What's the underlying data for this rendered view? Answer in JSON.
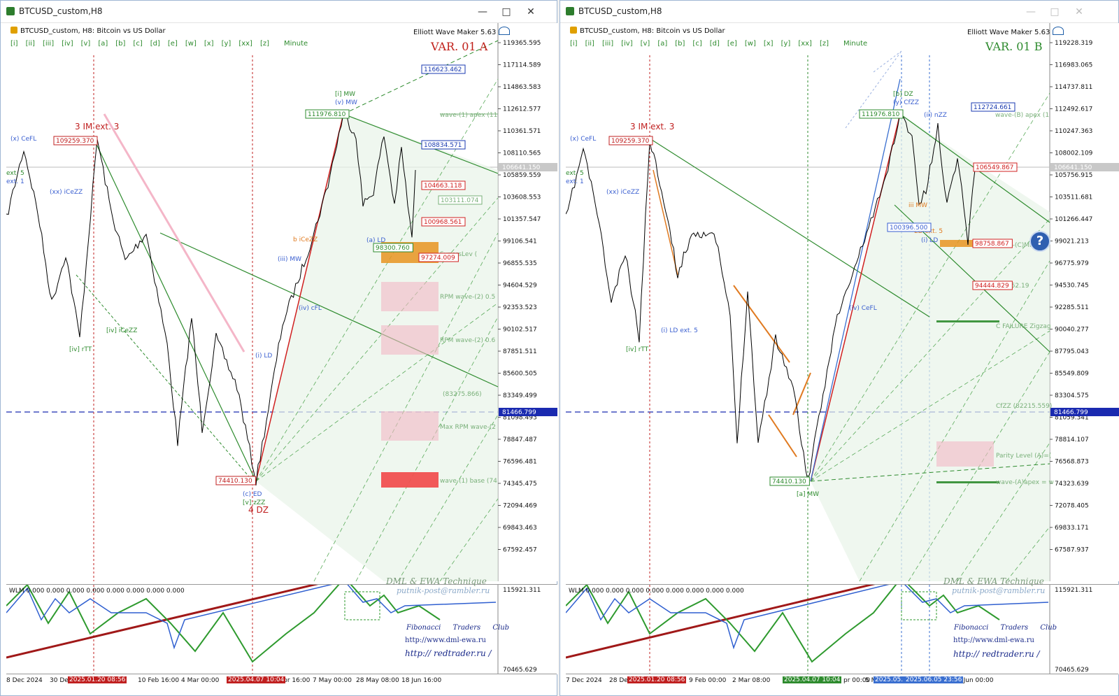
{
  "windows": [
    {
      "title": "BTCUSD_custom,H8",
      "symbol_text": "BTCUSD_custom, H8: Bitcoin vs US Dollar",
      "maker_text": "Elliott Wave Maker 5.63",
      "variant": "VAR. 01 A",
      "variant_color": "#c0201a",
      "timeframes": [
        "[i]",
        "[ii]",
        "[iii]",
        "[iv]",
        "[v]",
        "[a]",
        "[b]",
        "[c]",
        "[d]",
        "[e]",
        "[w]",
        "[x]",
        "[y]",
        "[xx]",
        "[z]",
        "Minute"
      ],
      "price_labels": [
        "119365.595",
        "117114.589",
        "114863.583",
        "112612.577",
        "110361.571",
        "108110.565",
        "105859.559",
        "103608.553",
        "101357.547",
        "99106.541",
        "96855.535",
        "94604.529",
        "92353.523",
        "90102.517",
        "87851.511",
        "85600.505",
        "83349.499",
        "81098.493",
        "78847.487",
        "76596.481",
        "74345.475",
        "72094.469",
        "69843.463",
        "67592.457"
      ],
      "current_price": "106641.150",
      "level_price": "81466.799",
      "ind_labels": [
        "115921.311",
        "70465.629"
      ],
      "wlm_text": "WLM 0.000 0.000 0.000 0.000 0.000 0.000 0.000 0.000",
      "credits": [
        "DML & EWA Technique",
        "putnik-post@rambler.ru",
        "Fibonacci Traders Club",
        "http://www.dml-ewa.ru",
        "http:// redtrader.ru /"
      ],
      "time_labels": [
        "8 Dec 2024",
        "30 De",
        "10 Feb 16:00",
        "4 Mar 00:00",
        "Apr 16:00",
        "7 May 00:00",
        "28 May 08:00",
        "18 Jun 16:00"
      ],
      "time_boxes": [
        "2025.01.20 08:56",
        "2025.04.07 10:04"
      ],
      "boxes": [
        "116623.462",
        "108834.571",
        "104663.118",
        "103111.074",
        "100968.561",
        "98300.760",
        "97274.009",
        "111976.810",
        "109259.370",
        "74410.130"
      ],
      "annotations": [
        "3 IM ext. 3",
        "4 DZ",
        "(x) CeFL",
        "(xx) iCeZZ",
        "[iv] iCeZZ",
        "[iv] rTT",
        "[i] MW",
        "(v) MW",
        "(a) LD",
        "(iii) MW",
        "(iv) cFL",
        "(i) LD",
        "(c) ED",
        "[v] zZZ",
        "b iCeZZ",
        "wave-(1) apex (11",
        "RPM wave-(2) 0.5",
        "RPM wave-(2) 0.6",
        "(83275.866)",
        "Max RPM wave-(2",
        "wave-(1) base (74",
        "SupersLev (",
        "ext. 5",
        "ext. 1"
      ]
    },
    {
      "title": "BTCUSD_custom,H8",
      "symbol_text": "BTCUSD_custom, H8: Bitcoin vs US Dollar",
      "maker_text": "Elliott Wave Maker 5.63",
      "variant": "VAR. 01 B",
      "variant_color": "#2e8b2e",
      "timeframes": [
        "[i]",
        "[ii]",
        "[iii]",
        "[iv]",
        "[v]",
        "[a]",
        "[b]",
        "[c]",
        "[d]",
        "[e]",
        "[w]",
        "[x]",
        "[y]",
        "[xx]",
        "[z]",
        "Minute"
      ],
      "price_labels": [
        "119228.319",
        "116983.065",
        "114737.811",
        "112492.617",
        "110247.363",
        "108002.109",
        "105756.915",
        "103511.681",
        "101266.447",
        "99021.213",
        "96775.979",
        "94530.745",
        "92285.511",
        "90040.277",
        "87795.043",
        "85549.809",
        "83304.575",
        "81059.341",
        "78814.107",
        "76568.873",
        "74323.639",
        "72078.405",
        "69833.171",
        "67587.937"
      ],
      "current_price": "106641.150",
      "level_price": "81466.799",
      "ind_labels": [
        "115921.311",
        "70465.629"
      ],
      "wlm_text": "WLM 0.000 0.000 0.000 0.000 0.000 0.000 0.000 0.000",
      "credits": [
        "DML & EWA Technique",
        "putnik-post@rambler.ru",
        "Fibonacci Traders Club",
        "http://www.dml-ewa.ru",
        "http:// redtrader.ru /"
      ],
      "time_labels": [
        "7 Dec 2024",
        "28 Dec",
        "9 Feb 00:00",
        "2 Mar 08:00",
        "pr 00:00",
        "5 M",
        "7 Jun 00:00"
      ],
      "time_boxes": [
        "2025.01.20 08:56",
        "2025.04.07 10:04",
        "2025.05.",
        "2025.06.05 23:56"
      ],
      "boxes": [
        "112724.661",
        "106549.867",
        "98758.867",
        "94444.829",
        "100396.500",
        "111976.810",
        "109259.370",
        "74410.130"
      ],
      "annotations": [
        "3 IM ext. 3",
        "(x) CeFL",
        "(xx) iCeZZ",
        "[iv] rTT",
        "(i) LD ext. 5",
        "[b] DZ",
        "(y) CfZZ",
        "(ii) nZZ",
        "[a] MW",
        "(iv) CeFL",
        "wave-(B) apex (1",
        "wave-(C)Mi",
        "(94552.19",
        "C FAILURE Zigzag",
        "CfZZ (82215.559)",
        "Parity Level (A)=(",
        "wave-(A)apex = w",
        "ED ext. 5",
        "(i) LD",
        "iii MW",
        "ext. 5",
        "ext. 1"
      ]
    }
  ],
  "colors": {
    "up": "#2e8b2e",
    "down": "#1f4fbf",
    "red": "#d02020",
    "orange": "#e07a20",
    "bg": "#ffffff"
  }
}
